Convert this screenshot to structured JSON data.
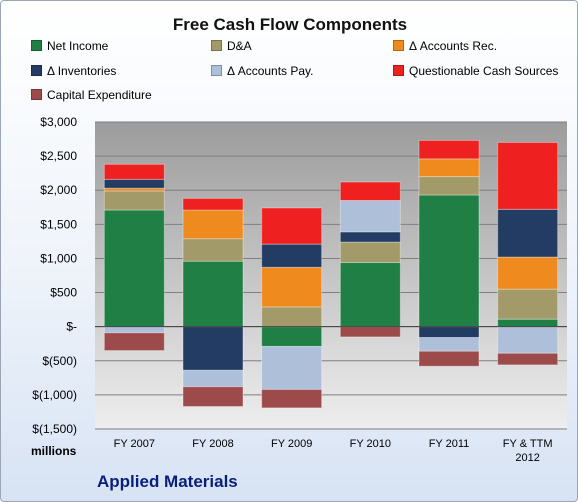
{
  "chart_data": {
    "type": "bar",
    "stacked": true,
    "title": "Free Cash Flow Components",
    "unit_label": "millions",
    "company": "Applied Materials",
    "categories": [
      [
        "FY 2007"
      ],
      [
        "FY 2008"
      ],
      [
        "FY 2009"
      ],
      [
        "FY 2010"
      ],
      [
        "FY 2011"
      ],
      [
        "FY & TTM",
        "2012"
      ]
    ],
    "ylim": [
      -1500,
      3000
    ],
    "y_ticks": [
      3000,
      2500,
      2000,
      1500,
      1000,
      500,
      0,
      -500,
      -1000,
      -1500
    ],
    "y_tick_labels": [
      "$3,000",
      "$2,500",
      "$2,000",
      "$1,500",
      "$1,000",
      "$500",
      "$-",
      "$(500)",
      "$(1,000)",
      "$(1,500)"
    ],
    "grid": true,
    "legend_position": "top",
    "series": [
      {
        "name": "Net Income",
        "color": "#1f7f45",
        "values": [
          1710,
          960,
          -290,
          940,
          1930,
          110
        ]
      },
      {
        "name": "D&A",
        "color": "#a39a6a",
        "values": [
          280,
          330,
          290,
          300,
          270,
          440
        ]
      },
      {
        "name": "Δ Accounts Rec.",
        "color": "#ee8a1e",
        "values": [
          40,
          420,
          580,
          0,
          260,
          470
        ]
      },
      {
        "name": "Δ Inventories",
        "color": "#233c63",
        "values": [
          130,
          -640,
          340,
          150,
          -160,
          700
        ]
      },
      {
        "name": "Δ Accounts Pay.",
        "color": "#aebfd9",
        "values": [
          -90,
          -240,
          -630,
          460,
          -200,
          -390
        ]
      },
      {
        "name": "Questionable Cash Sources",
        "color": "#ef2020",
        "values": [
          220,
          170,
          530,
          270,
          270,
          980
        ]
      },
      {
        "name": "Capital Expenditure",
        "color": "#9c4a4a",
        "values": [
          -260,
          -290,
          -270,
          -150,
          -220,
          -170
        ]
      }
    ]
  }
}
